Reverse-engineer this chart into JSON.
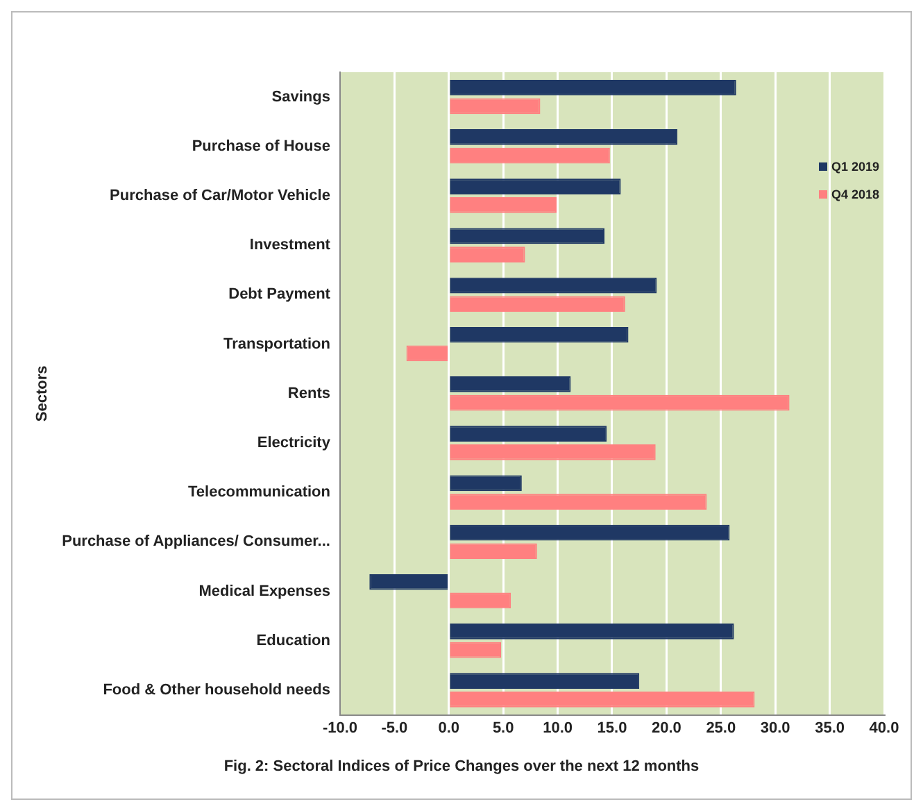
{
  "chart_data": {
    "type": "bar",
    "orientation": "horizontal",
    "title": "Fig. 2: Sectoral Indices of Price Changes over the next 12 months",
    "ylabel": "Sectors",
    "categories": [
      "Savings",
      "Purchase of House",
      "Purchase of Car/Motor Vehicle",
      "Investment",
      "Debt Payment",
      "Transportation",
      "Rents",
      "Electricity",
      "Telecommunication",
      "Purchase of Appliances/ Consumer...",
      "Medical Expenses",
      "Education",
      "Food & Other household needs"
    ],
    "series": [
      {
        "name": "Q1 2019",
        "color": "#1f3864",
        "values": [
          26.4,
          21.0,
          15.8,
          14.3,
          19.1,
          16.5,
          11.2,
          14.5,
          6.7,
          25.8,
          -7.3,
          26.2,
          17.5
        ]
      },
      {
        "name": "Q4 2018",
        "color": "#ff8080",
        "values": [
          8.4,
          14.8,
          9.9,
          7.0,
          16.2,
          -3.9,
          31.3,
          19.0,
          23.7,
          8.1,
          5.7,
          4.8,
          28.1
        ]
      }
    ],
    "xlim": [
      -10,
      40
    ],
    "xticks": [
      {
        "value": -10,
        "label": "-10.0"
      },
      {
        "value": -5,
        "label": "-5.0"
      },
      {
        "value": 0,
        "label": "0.0"
      },
      {
        "value": 5,
        "label": "5.0"
      },
      {
        "value": 10,
        "label": "10.0"
      },
      {
        "value": 15,
        "label": "15.0"
      },
      {
        "value": 20,
        "label": "20.0"
      },
      {
        "value": 25,
        "label": "25.0"
      },
      {
        "value": 30,
        "label": "30.0"
      },
      {
        "value": 35,
        "label": "35.0"
      },
      {
        "value": 40,
        "label": "40.0"
      }
    ],
    "grid": "x",
    "legend": "top right"
  }
}
